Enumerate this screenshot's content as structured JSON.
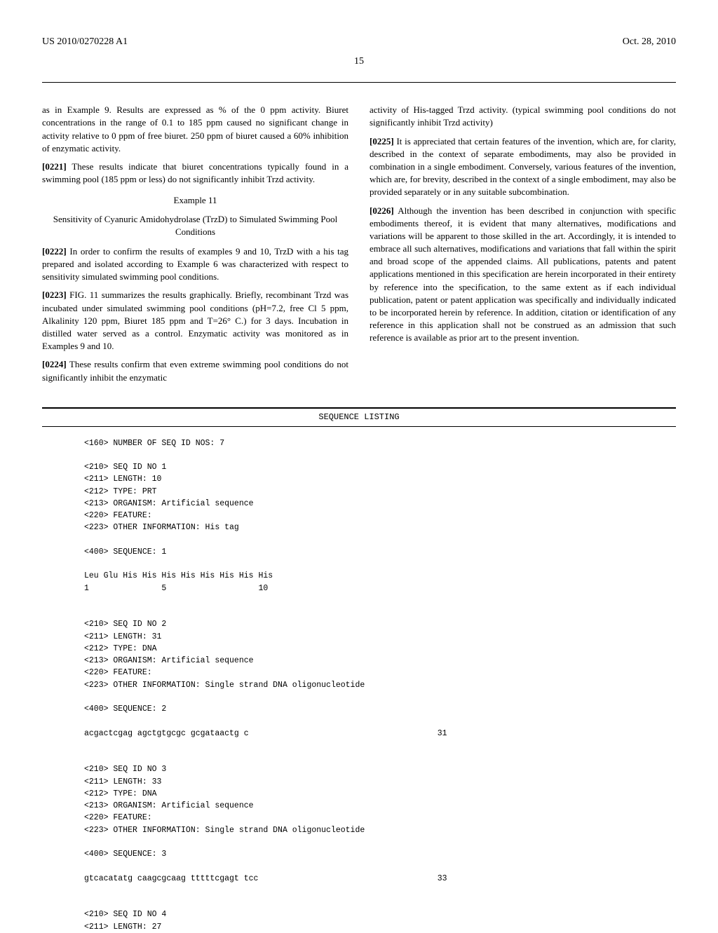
{
  "header": {
    "left": "US 2010/0270228 A1",
    "right": "Oct. 28, 2010"
  },
  "pageNumber": "15",
  "leftColumn": {
    "p1": "as in Example 9. Results are expressed as % of the 0 ppm activity. Biuret concentrations in the range of 0.1 to 185 ppm caused no significant change in activity relative to 0 ppm of free biuret. 250 ppm of biuret caused a 60% inhibition of enzymatic activity.",
    "p2num": "[0221]",
    "p2": "These results indicate that biuret concentrations typically found in a swimming pool (185 ppm or less) do not significantly inhibit Trzd activity.",
    "exampleTitle": "Example 11",
    "exampleSubtitle": "Sensitivity of Cyanuric Amidohydrolase (TrzD) to Simulated Swimming Pool Conditions",
    "p3num": "[0222]",
    "p3": "In order to confirm the results of examples 9 and 10, TrzD with a his tag prepared and isolated according to Example 6 was characterized with respect to sensitivity simulated swimming pool conditions.",
    "p4num": "[0223]",
    "p4": "FIG. 11 summarizes the results graphically. Briefly, recombinant Trzd was incubated under simulated swimming pool conditions (pH=7.2, free Cl 5 ppm, Alkalinity 120 ppm, Biuret 185 ppm and T=26° C.) for 3 days. Incubation in distilled water served as a control. Enzymatic activity was monitored as in Examples 9 and 10.",
    "p5num": "[0224]",
    "p5": "These results confirm that even extreme swimming pool conditions do not significantly inhibit the enzymatic"
  },
  "rightColumn": {
    "p1": "activity of His-tagged Trzd activity. (typical swimming pool conditions do not significantly inhibit Trzd activity)",
    "p2num": "[0225]",
    "p2": "It is appreciated that certain features of the invention, which are, for clarity, described in the context of separate embodiments, may also be provided in combination in a single embodiment. Conversely, various features of the invention, which are, for brevity, described in the context of a single embodiment, may also be provided separately or in any suitable subcombination.",
    "p3num": "[0226]",
    "p3": "Although the invention has been described in conjunction with specific embodiments thereof, it is evident that many alternatives, modifications and variations will be apparent to those skilled in the art. Accordingly, it is intended to embrace all such alternatives, modifications and variations that fall within the spirit and broad scope of the appended claims. All publications, patents and patent applications mentioned in this specification are herein incorporated in their entirety by reference into the specification, to the same extent as if each individual publication, patent or patent application was specifically and individually indicated to be incorporated herein by reference. In addition, citation or identification of any reference in this application shall not be construed as an admission that such reference is available as prior art to the present invention."
  },
  "sequenceListing": {
    "title": "SEQUENCE LISTING",
    "content": "<160> NUMBER OF SEQ ID NOS: 7\n\n<210> SEQ ID NO 1\n<211> LENGTH: 10\n<212> TYPE: PRT\n<213> ORGANISM: Artificial sequence\n<220> FEATURE:\n<223> OTHER INFORMATION: His tag\n\n<400> SEQUENCE: 1\n\nLeu Glu His His His His His His His His\n1               5                   10\n\n\n<210> SEQ ID NO 2\n<211> LENGTH: 31\n<212> TYPE: DNA\n<213> ORGANISM: Artificial sequence\n<220> FEATURE:\n<223> OTHER INFORMATION: Single strand DNA oligonucleotide\n\n<400> SEQUENCE: 2\n\nacgactcgag agctgtgcgc gcgataactg c                                       31\n\n\n<210> SEQ ID NO 3\n<211> LENGTH: 33\n<212> TYPE: DNA\n<213> ORGANISM: Artificial sequence\n<220> FEATURE:\n<223> OTHER INFORMATION: Single strand DNA oligonucleotide\n\n<400> SEQUENCE: 3\n\ngtcacatatg caagcgcaag tttttcgagt tcc                                     33\n\n\n<210> SEQ ID NO 4\n<211> LENGTH: 27"
  }
}
